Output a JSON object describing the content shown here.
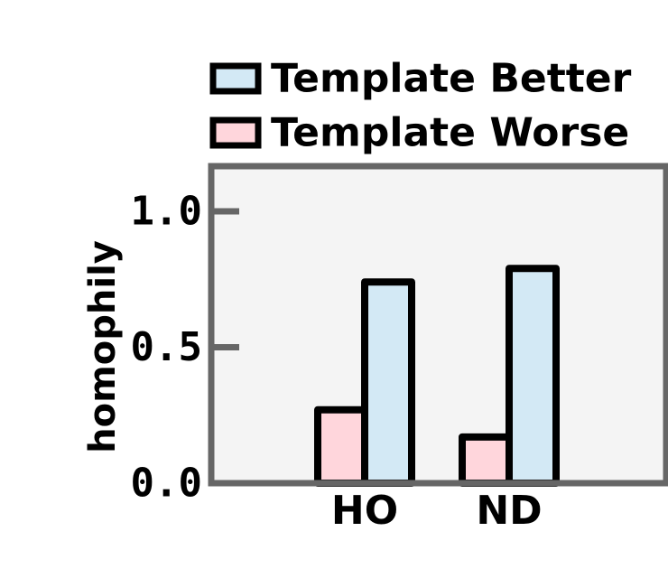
{
  "chart_data": {
    "type": "bar",
    "title": "",
    "xlabel": "",
    "ylabel": "homophily",
    "categories": [
      "HO",
      "ND"
    ],
    "series": [
      {
        "name": "Template Worse",
        "values": [
          0.27,
          0.17
        ],
        "color": "#ffd6dc"
      },
      {
        "name": "Template Better",
        "values": [
          0.74,
          0.79
        ],
        "color": "#d3e9f5"
      }
    ],
    "ylim": [
      0.0,
      1.18
    ],
    "yticks": [
      0.0,
      0.5,
      1.0
    ],
    "ytick_labels": [
      "0.0",
      "0.5",
      "1.0"
    ],
    "legend": {
      "placement": "top-right",
      "order": [
        "Template Better",
        "Template Worse"
      ]
    },
    "grid": false,
    "colors": {
      "plot_background": "#f4f4f4",
      "axes_frame": "#666666",
      "bar_edge": "#000000"
    }
  }
}
